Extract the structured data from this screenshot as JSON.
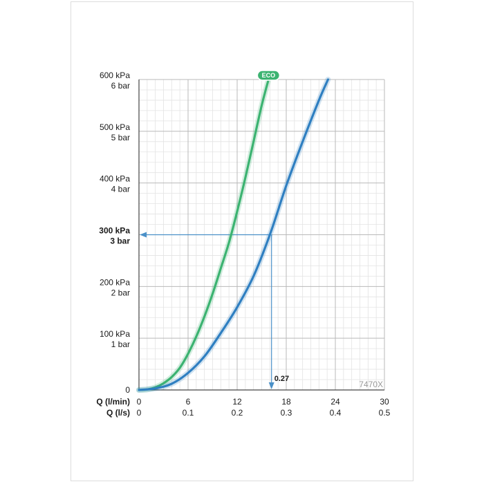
{
  "chart_data": {
    "type": "line",
    "title": "",
    "model_label": "7470X",
    "x_axis": {
      "label_primary": "Q (l/min)",
      "label_secondary": "Q (l/s)",
      "ticks_primary": [
        "0",
        "6",
        "12",
        "18",
        "24",
        "30"
      ],
      "ticks_secondary": [
        "0",
        "0.1",
        "0.2",
        "0.3",
        "0.4",
        "0.5"
      ],
      "range": [
        0,
        30
      ]
    },
    "y_axis": {
      "ticks": [
        {
          "kpa": "0",
          "bar": ""
        },
        {
          "kpa": "100 kPa",
          "bar": "1 bar"
        },
        {
          "kpa": "200 kPa",
          "bar": "2 bar"
        },
        {
          "kpa": "300 kPa",
          "bar": "3 bar"
        },
        {
          "kpa": "400 kPa",
          "bar": "4 bar"
        },
        {
          "kpa": "500 kPa",
          "bar": "5 bar"
        },
        {
          "kpa": "600 kPa",
          "bar": "6 bar"
        }
      ],
      "range": [
        0,
        600
      ],
      "highlight_index": 3
    },
    "grid": true,
    "series": [
      {
        "name": "ECO",
        "color": "#3cb371",
        "x": [
          0,
          1,
          2,
          3,
          4,
          5,
          6,
          7,
          8,
          9,
          10,
          11,
          12,
          13,
          14,
          15,
          16
        ],
        "y": [
          0,
          1,
          5,
          13,
          25,
          43,
          70,
          103,
          142,
          186,
          235,
          285,
          345,
          410,
          480,
          550,
          610
        ]
      },
      {
        "name": "",
        "color": "#2f7fc1",
        "x": [
          0,
          2,
          4,
          6,
          8,
          10,
          12,
          14,
          16,
          18,
          20,
          22,
          23.1
        ],
        "y": [
          0,
          3,
          12,
          33,
          65,
          110,
          160,
          220,
          300,
          395,
          480,
          560,
          600
        ]
      }
    ],
    "annotation": {
      "label": "0.27",
      "x_lmin": 16.2,
      "y_kpa": 300,
      "color": "#4a90c8"
    }
  }
}
